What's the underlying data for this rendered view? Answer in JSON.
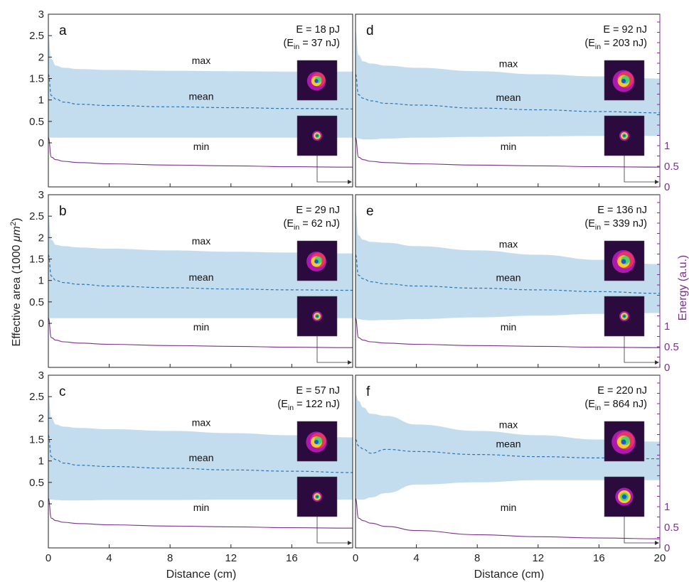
{
  "figure": {
    "ylabel_left_text": "Effective area (1000 ",
    "ylabel_left_unit": "μm",
    "ylabel_left_sup": "2",
    "ylabel_left_close": ")",
    "ylabel_right": "Energy (a.u.)",
    "xlabel": "Distance (cm)"
  },
  "colors": {
    "band": "#c3ddef",
    "mean": "#2a74b8",
    "energy": "#7d2e8f",
    "energy_axis": "#7d2e8f",
    "inset_bg": "#2b0a3d"
  },
  "chart_data": [
    {
      "type": "area",
      "panel": "a",
      "energy_label": "E = 18 pJ",
      "ein_label": "(E",
      "ein_sub": "in",
      "ein_value": " = 37 nJ)",
      "region_labels": {
        "max": "max",
        "mean": "mean",
        "min": "min"
      },
      "x": [
        0,
        0.2,
        0.5,
        1,
        2,
        4,
        8,
        12,
        16,
        20
      ],
      "xlim": [
        0,
        20
      ],
      "ylim": [
        0,
        3
      ],
      "left_ticks": [
        "0",
        "0.5",
        "1",
        "1.5",
        "2",
        "2.5",
        "3"
      ],
      "series": [
        {
          "name": "max",
          "values": [
            2.5,
            1.95,
            1.8,
            1.75,
            1.72,
            1.7,
            1.68,
            1.67,
            1.66,
            1.66
          ]
        },
        {
          "name": "mean",
          "values": [
            1.6,
            1.1,
            1.02,
            0.95,
            0.9,
            0.87,
            0.84,
            0.82,
            0.8,
            0.79
          ]
        },
        {
          "name": "min",
          "values": [
            0.12,
            0.12,
            0.12,
            0.12,
            0.12,
            0.12,
            0.12,
            0.12,
            0.12,
            0.12
          ]
        },
        {
          "name": "energy",
          "values": [
            1.2,
            0.72,
            0.66,
            0.62,
            0.59,
            0.56,
            0.53,
            0.51,
            0.49,
            0.48
          ]
        }
      ]
    },
    {
      "type": "area",
      "panel": "b",
      "energy_label": "E = 29 nJ",
      "ein_label": "(E",
      "ein_sub": "in",
      "ein_value": " = 62 nJ)",
      "region_labels": {
        "max": "max",
        "mean": "mean",
        "min": "min"
      },
      "x": [
        0,
        0.2,
        0.5,
        1,
        2,
        4,
        8,
        12,
        16,
        20
      ],
      "xlim": [
        0,
        20
      ],
      "ylim": [
        0,
        3
      ],
      "left_ticks": [
        "0",
        "0.5",
        "1",
        "1.5",
        "2",
        "2.5",
        "3"
      ],
      "series": [
        {
          "name": "max",
          "values": [
            2.5,
            1.95,
            1.83,
            1.8,
            1.77,
            1.74,
            1.7,
            1.67,
            1.65,
            1.63
          ]
        },
        {
          "name": "mean",
          "values": [
            1.6,
            1.1,
            1.0,
            0.95,
            0.91,
            0.87,
            0.83,
            0.8,
            0.78,
            0.77
          ]
        },
        {
          "name": "min",
          "values": [
            0.12,
            0.12,
            0.12,
            0.12,
            0.12,
            0.12,
            0.12,
            0.12,
            0.12,
            0.12
          ]
        },
        {
          "name": "energy",
          "values": [
            1.2,
            0.72,
            0.66,
            0.62,
            0.59,
            0.56,
            0.53,
            0.51,
            0.49,
            0.48
          ]
        }
      ]
    },
    {
      "type": "area",
      "panel": "c",
      "energy_label": "E = 57 nJ",
      "ein_label": "(E",
      "ein_sub": "in",
      "ein_value": " = 122 nJ)",
      "region_labels": {
        "max": "max",
        "mean": "mean",
        "min": "min"
      },
      "x": [
        0,
        0.2,
        0.5,
        1,
        2,
        4,
        8,
        12,
        16,
        20
      ],
      "xlim": [
        0,
        20
      ],
      "ylim": [
        0,
        3
      ],
      "left_ticks": [
        "0",
        "0.5",
        "1",
        "1.5",
        "2",
        "2.5",
        "3"
      ],
      "series": [
        {
          "name": "max",
          "values": [
            2.55,
            2.0,
            1.85,
            1.8,
            1.77,
            1.74,
            1.7,
            1.65,
            1.6,
            1.55
          ]
        },
        {
          "name": "mean",
          "values": [
            1.6,
            1.1,
            1.03,
            0.95,
            0.9,
            0.87,
            0.83,
            0.79,
            0.76,
            0.73
          ]
        },
        {
          "name": "min",
          "values": [
            0.1,
            0.1,
            0.09,
            0.08,
            0.08,
            0.09,
            0.09,
            0.1,
            0.1,
            0.1
          ]
        },
        {
          "name": "energy",
          "values": [
            1.2,
            0.72,
            0.66,
            0.62,
            0.59,
            0.56,
            0.53,
            0.51,
            0.49,
            0.48
          ]
        }
      ]
    },
    {
      "type": "area",
      "panel": "d",
      "energy_label": "E = 92 nJ",
      "ein_label": "(E",
      "ein_sub": "in",
      "ein_value": " = 203 nJ)",
      "region_labels": {
        "max": "max",
        "mean": "mean",
        "min": "min"
      },
      "x": [
        0,
        0.2,
        0.5,
        1,
        2,
        4,
        8,
        12,
        16,
        20
      ],
      "xlim": [
        0,
        20
      ],
      "ylim": [
        0,
        3
      ],
      "right_ticks": [
        "0",
        "0.5",
        "1"
      ],
      "series": [
        {
          "name": "max",
          "values": [
            2.6,
            2.05,
            1.9,
            1.85,
            1.8,
            1.75,
            1.67,
            1.6,
            1.55,
            1.5
          ]
        },
        {
          "name": "mean",
          "values": [
            1.6,
            1.12,
            1.04,
            0.98,
            0.92,
            0.88,
            0.81,
            0.77,
            0.73,
            0.7
          ]
        },
        {
          "name": "min",
          "values": [
            0.12,
            0.1,
            0.08,
            0.08,
            0.1,
            0.12,
            0.14,
            0.15,
            0.16,
            0.16
          ]
        },
        {
          "name": "energy",
          "values": [
            1.2,
            0.72,
            0.66,
            0.62,
            0.59,
            0.56,
            0.53,
            0.51,
            0.49,
            0.48
          ]
        }
      ]
    },
    {
      "type": "area",
      "panel": "e",
      "energy_label": "E = 136 nJ",
      "ein_label": "(E",
      "ein_sub": "in",
      "ein_value": " = 339 nJ)",
      "region_labels": {
        "max": "max",
        "mean": "mean",
        "min": "min"
      },
      "x": [
        0,
        0.2,
        0.5,
        1,
        2,
        4,
        8,
        12,
        16,
        20
      ],
      "xlim": [
        0,
        20
      ],
      "ylim": [
        0,
        3
      ],
      "right_ticks": [
        "0",
        "0.5",
        "1"
      ],
      "series": [
        {
          "name": "max",
          "values": [
            2.6,
            2.05,
            1.95,
            1.9,
            1.88,
            1.8,
            1.7,
            1.6,
            1.48,
            1.38
          ]
        },
        {
          "name": "mean",
          "values": [
            1.6,
            1.12,
            1.04,
            0.97,
            0.92,
            0.87,
            0.82,
            0.78,
            0.74,
            0.7
          ]
        },
        {
          "name": "min",
          "values": [
            0.12,
            0.1,
            0.08,
            0.07,
            0.08,
            0.1,
            0.14,
            0.18,
            0.22,
            0.24
          ]
        },
        {
          "name": "energy",
          "values": [
            1.2,
            0.72,
            0.66,
            0.62,
            0.59,
            0.56,
            0.53,
            0.51,
            0.49,
            0.48
          ]
        }
      ]
    },
    {
      "type": "area",
      "panel": "f",
      "energy_label": "E = 220 nJ",
      "ein_label": "(E",
      "ein_sub": "in",
      "ein_value": " = 864 nJ)",
      "region_labels": {
        "max": "max",
        "mean": "mean",
        "min": "min"
      },
      "x": [
        0,
        0.2,
        0.5,
        1,
        2,
        4,
        8,
        12,
        16,
        20
      ],
      "xlim": [
        0,
        20
      ],
      "ylim": [
        0,
        3
      ],
      "right_ticks": [
        "0",
        "0.5",
        "1"
      ],
      "x_ticks": [
        "0",
        "4",
        "8",
        "12",
        "16",
        "20"
      ],
      "series": [
        {
          "name": "max",
          "values": [
            2.55,
            2.4,
            2.25,
            2.1,
            2.05,
            1.85,
            1.7,
            1.6,
            1.5,
            1.45
          ]
        },
        {
          "name": "mean",
          "values": [
            1.5,
            1.35,
            1.28,
            1.18,
            1.27,
            1.22,
            1.15,
            1.1,
            1.07,
            1.05
          ]
        },
        {
          "name": "min",
          "values": [
            0.12,
            0.1,
            0.1,
            0.15,
            0.25,
            0.45,
            0.5,
            0.55,
            0.55,
            0.55
          ]
        },
        {
          "name": "energy",
          "values": [
            1.2,
            0.72,
            0.66,
            0.6,
            0.52,
            0.42,
            0.32,
            0.27,
            0.24,
            0.22
          ]
        }
      ]
    }
  ],
  "x_ticks_left": [
    "0",
    "4",
    "8",
    "12",
    "16"
  ],
  "x_ticks_right": [
    "0",
    "4",
    "8",
    "12",
    "16",
    "20"
  ]
}
